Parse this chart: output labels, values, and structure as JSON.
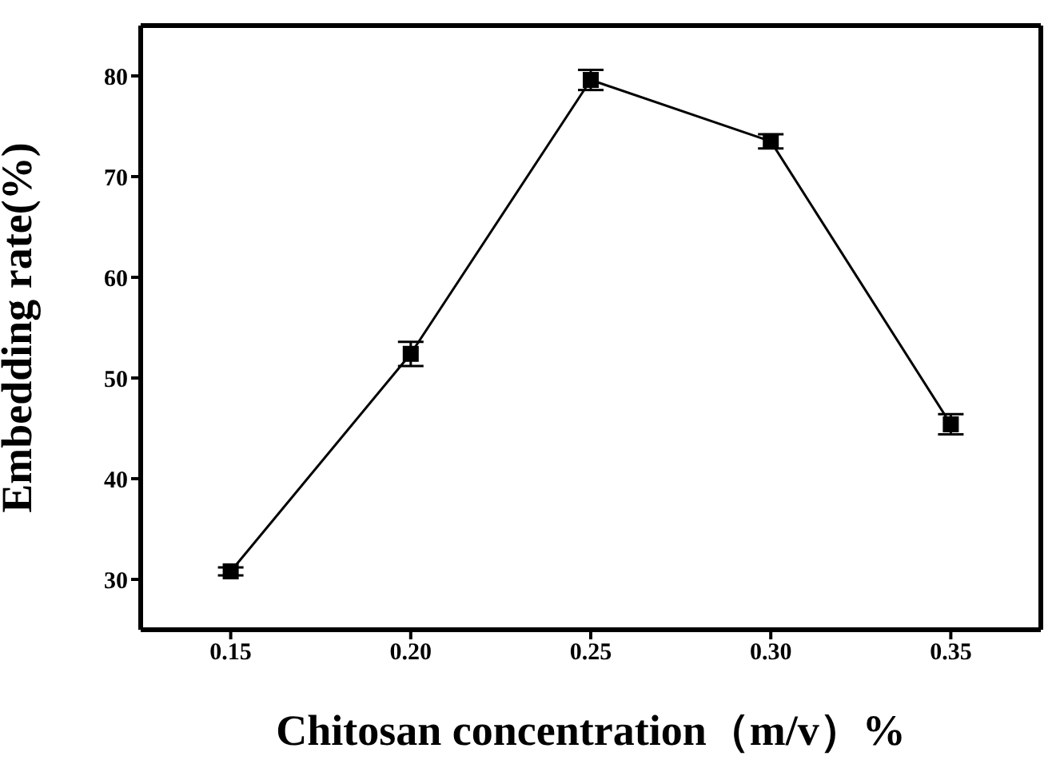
{
  "chart_data": {
    "type": "line",
    "xlabel": "Chitosan concentration（m/v）%",
    "ylabel": "Embedding rate(%)",
    "x": [
      0.15,
      0.2,
      0.25,
      0.3,
      0.35
    ],
    "series": [
      {
        "color": "#000000",
        "values": [
          30.8,
          52.4,
          79.6,
          73.5,
          45.4
        ],
        "errors": [
          0.4,
          1.2,
          1.0,
          0.7,
          1.0
        ]
      }
    ],
    "xlim": [
      0.125,
      0.375
    ],
    "xticks": [
      {
        "value": 0.15,
        "label": "0.15"
      },
      {
        "value": 0.2,
        "label": "0.20"
      },
      {
        "value": 0.25,
        "label": "0.25"
      },
      {
        "value": 0.3,
        "label": "0.30"
      },
      {
        "value": 0.35,
        "label": "0.35"
      }
    ],
    "ylim": [
      25,
      85
    ],
    "yticks": [
      30,
      40,
      50,
      60,
      70,
      80
    ],
    "grid": false,
    "legend": false,
    "marker": "square",
    "line_style": "solid"
  }
}
